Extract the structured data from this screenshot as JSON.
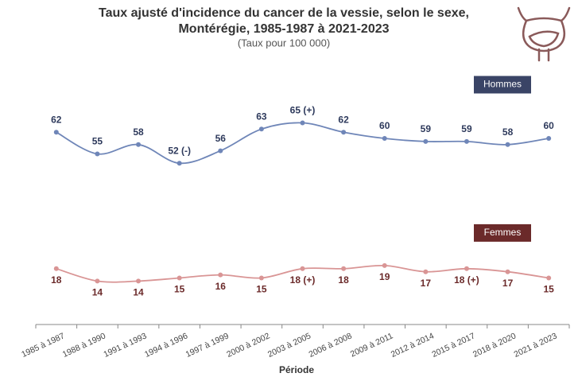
{
  "chart_data": {
    "type": "line",
    "title": [
      "Taux ajusté d'incidence du cancer de la vessie, selon le sexe,",
      "Montérégie, 1985-1987 à 2021-2023"
    ],
    "subtitle": "(Taux pour 100 000)",
    "x_label": "Période",
    "categories": [
      "1985 à 1987",
      "1988 à 1990",
      "1991 à 1993",
      "1994 à 1996",
      "1997 à 1999",
      "2000 à 2002",
      "2003 à 2005",
      "2006 à 2008",
      "2009 à 2011",
      "2012 à 2014",
      "2015 à 2017",
      "2018 à 2020",
      "2021 à 2023"
    ],
    "ylim": [
      0,
      80
    ],
    "series": [
      {
        "name": "Hommes",
        "color": "#6f86b8",
        "label_color": "#2e3a5c",
        "legend_color": "#3a4466",
        "values": [
          62,
          55,
          58,
          52,
          56,
          63,
          65,
          62,
          60,
          59,
          59,
          58,
          60
        ],
        "value_labels": [
          "62",
          "55",
          "58",
          "52 (-)",
          "56",
          "63",
          "65 (+)",
          "62",
          "60",
          "59",
          "59",
          "58",
          "60"
        ]
      },
      {
        "name": "Femmes",
        "color": "#d99595",
        "label_color": "#6b2a2a",
        "legend_color": "#6b2a2a",
        "values": [
          18,
          14,
          14,
          15,
          16,
          15,
          18,
          18,
          19,
          17,
          18,
          17,
          15
        ],
        "value_labels": [
          "18",
          "14",
          "14",
          "15",
          "16",
          "15",
          "18 (+)",
          "18",
          "19",
          "17",
          "18 (+)",
          "17",
          "15"
        ]
      }
    ]
  }
}
